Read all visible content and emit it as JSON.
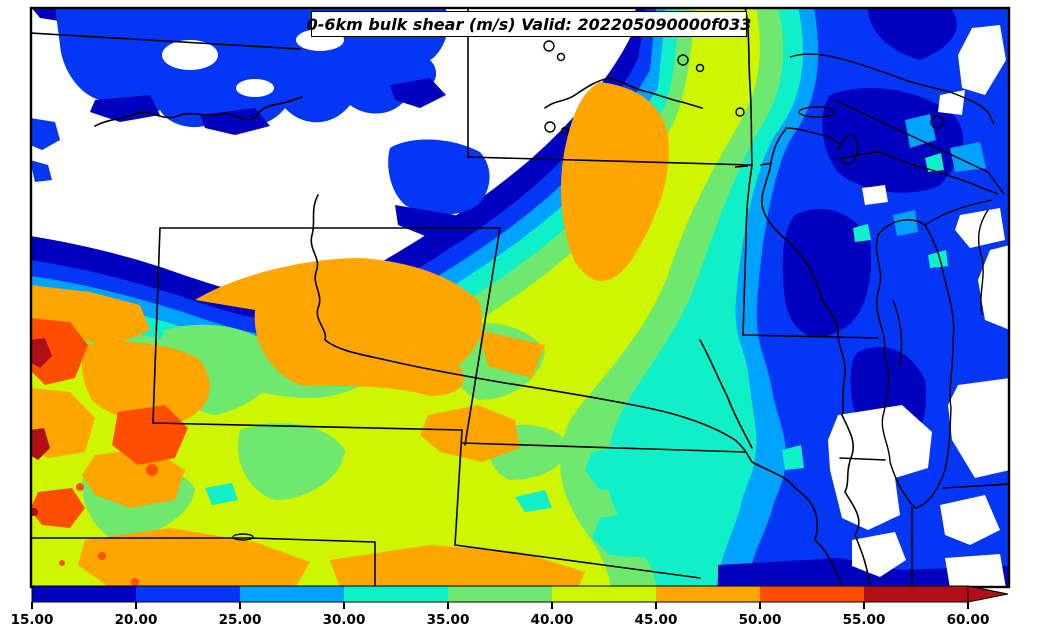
{
  "title": "0-6km bulk shear (m/s) Valid: 202205090000f033",
  "palette": {
    "background": "#ffffff",
    "navy": "#0000BE",
    "blue": "#0437F5",
    "lightblue": "#00A2FF",
    "cyan": "#10F0C8",
    "green": "#6FE86F",
    "yellowgreen": "#CDF600",
    "orange": "#FFA500",
    "orangered": "#FF4E00",
    "darkred": "#B01015",
    "line": "#000000"
  },
  "colorbar": {
    "tick_labels": [
      "15.00",
      "20.00",
      "25.00",
      "30.00",
      "35.00",
      "40.00",
      "45.00",
      "50.00",
      "55.00",
      "60.00"
    ],
    "segment_colors": [
      "#0000BE",
      "#0437F5",
      "#00A2FF",
      "#10F0C8",
      "#6FE86F",
      "#CDF600",
      "#FFA500",
      "#FF4E00",
      "#B01015"
    ],
    "arrow_color": "#B01015"
  },
  "chart_data": {
    "type": "filled_contour_map",
    "title": "0-6km bulk shear (m/s) Valid: 202205090000f033",
    "variable": "0-6km bulk shear",
    "units": "m/s",
    "valid_time": "202205090000f033",
    "contour_levels": [
      15,
      20,
      25,
      30,
      35,
      40,
      45,
      50,
      55,
      60
    ],
    "level_colors": [
      "#0000BE",
      "#0437F5",
      "#00A2FF",
      "#10F0C8",
      "#6FE86F",
      "#CDF600",
      "#FFA500",
      "#FF4E00",
      "#B01015"
    ],
    "extend": "max",
    "below_min_color": "#ffffff",
    "colorbar_position": "bottom",
    "region": "U.S. Upper Midwest / Northern Plains with state borders, Missouri River and Great Lakes outlines",
    "pattern_summary": [
      {
        "area": "northwest (Montana / western Dakotas)",
        "value_range": "<15 to 25",
        "appearance": "white with blue blobs"
      },
      {
        "area": "SW-NE ridge from Colorado through Nebraska / South Dakota into central Minnesota",
        "value_range": "40-55, small spots 55-60 far west",
        "appearance": "yellow-green with orange and orange-red cores"
      },
      {
        "area": "east (Wisconsin, Lake Michigan, Michigan, Illinois)",
        "value_range": "<15 to 25",
        "appearance": "royal blue and navy with white gaps"
      },
      {
        "area": "transition band NW of ridge and E of ridge",
        "value_range": "25-40",
        "appearance": "light blue, turquoise, green bands"
      }
    ]
  }
}
